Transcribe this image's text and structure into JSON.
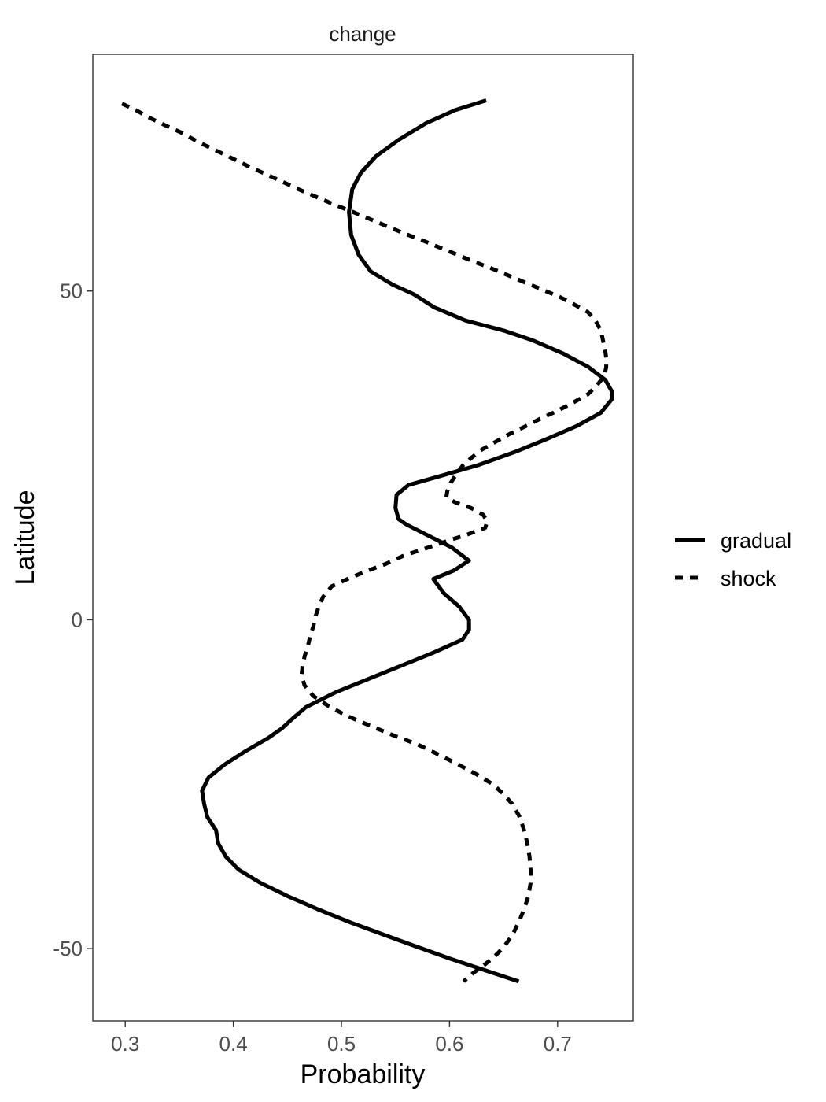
{
  "chart_data": {
    "type": "line",
    "title": "change",
    "xlabel": "Probability",
    "ylabel": "Latitude",
    "xlim": [
      0.27,
      0.77
    ],
    "ylim": [
      -61,
      86
    ],
    "x_ticks": [
      0.3,
      0.4,
      0.5,
      0.6,
      0.7
    ],
    "x_tick_labels": [
      "0.3",
      "0.4",
      "0.5",
      "0.6",
      "0.7"
    ],
    "y_ticks": [
      -50,
      0,
      50
    ],
    "y_tick_labels": [
      "-50",
      "0",
      "50"
    ],
    "grid": false,
    "legend_position": "right",
    "series": [
      {
        "name": "gradual",
        "dash": "solid",
        "color": "#000000",
        "points": [
          [
            0.634,
            79
          ],
          [
            0.605,
            77.5
          ],
          [
            0.578,
            75.5
          ],
          [
            0.553,
            73
          ],
          [
            0.532,
            70.5
          ],
          [
            0.518,
            68
          ],
          [
            0.51,
            65.5
          ],
          [
            0.507,
            62
          ],
          [
            0.509,
            58.5
          ],
          [
            0.516,
            55.5
          ],
          [
            0.527,
            53
          ],
          [
            0.547,
            51
          ],
          [
            0.567,
            49.5
          ],
          [
            0.586,
            47.5
          ],
          [
            0.615,
            45.5
          ],
          [
            0.65,
            44
          ],
          [
            0.677,
            42.5
          ],
          [
            0.705,
            40.5
          ],
          [
            0.728,
            38.5
          ],
          [
            0.744,
            36.5
          ],
          [
            0.75,
            34.8
          ],
          [
            0.75,
            33.5
          ],
          [
            0.74,
            31.5
          ],
          [
            0.718,
            29.5
          ],
          [
            0.69,
            27.5
          ],
          [
            0.66,
            25.5
          ],
          [
            0.626,
            23.5
          ],
          [
            0.59,
            21.8
          ],
          [
            0.562,
            20.5
          ],
          [
            0.551,
            19
          ],
          [
            0.55,
            17
          ],
          [
            0.553,
            15.3
          ],
          [
            0.56,
            14.5
          ],
          [
            0.578,
            13
          ],
          [
            0.602,
            11
          ],
          [
            0.618,
            9
          ],
          [
            0.604,
            7.5
          ],
          [
            0.585,
            6.2
          ],
          [
            0.595,
            4
          ],
          [
            0.609,
            2
          ],
          [
            0.618,
            0
          ],
          [
            0.618,
            -1.5
          ],
          [
            0.612,
            -3
          ],
          [
            0.585,
            -5
          ],
          [
            0.555,
            -7
          ],
          [
            0.525,
            -9
          ],
          [
            0.495,
            -11
          ],
          [
            0.467,
            -13.3
          ],
          [
            0.455,
            -15
          ],
          [
            0.445,
            -16.5
          ],
          [
            0.432,
            -18
          ],
          [
            0.411,
            -20
          ],
          [
            0.392,
            -22
          ],
          [
            0.377,
            -24
          ],
          [
            0.371,
            -26
          ],
          [
            0.373,
            -28
          ],
          [
            0.376,
            -30
          ],
          [
            0.384,
            -32
          ],
          [
            0.386,
            -34
          ],
          [
            0.393,
            -36
          ],
          [
            0.405,
            -38
          ],
          [
            0.425,
            -40
          ],
          [
            0.45,
            -42
          ],
          [
            0.478,
            -44
          ],
          [
            0.508,
            -46
          ],
          [
            0.536,
            -47.7
          ],
          [
            0.566,
            -49.5
          ],
          [
            0.6,
            -51.5
          ],
          [
            0.633,
            -53.3
          ],
          [
            0.664,
            -55
          ]
        ]
      },
      {
        "name": "shock",
        "dash": "dashed",
        "color": "#000000",
        "points": [
          [
            0.297,
            78.5
          ],
          [
            0.31,
            77.5
          ],
          [
            0.323,
            76.3
          ],
          [
            0.337,
            75.2
          ],
          [
            0.353,
            74
          ],
          [
            0.367,
            72.7
          ],
          [
            0.381,
            71.6
          ],
          [
            0.395,
            70.5
          ],
          [
            0.411,
            69.2
          ],
          [
            0.427,
            68
          ],
          [
            0.443,
            66.8
          ],
          [
            0.46,
            65.5
          ],
          [
            0.477,
            64.3
          ],
          [
            0.494,
            63.1
          ],
          [
            0.511,
            62
          ],
          [
            0.527,
            60.9
          ],
          [
            0.543,
            59.8
          ],
          [
            0.559,
            58.7
          ],
          [
            0.575,
            57.7
          ],
          [
            0.591,
            56.6
          ],
          [
            0.606,
            55.6
          ],
          [
            0.622,
            54.5
          ],
          [
            0.638,
            53.5
          ],
          [
            0.654,
            52.4
          ],
          [
            0.67,
            51.3
          ],
          [
            0.686,
            50.2
          ],
          [
            0.702,
            49.1
          ],
          [
            0.716,
            47.9
          ],
          [
            0.728,
            46.8
          ],
          [
            0.735,
            45.5
          ],
          [
            0.74,
            44
          ],
          [
            0.742,
            42.5
          ],
          [
            0.744,
            41
          ],
          [
            0.745,
            39.8
          ],
          [
            0.745,
            38.4
          ],
          [
            0.743,
            37
          ],
          [
            0.736,
            35.6
          ],
          [
            0.728,
            34.3
          ],
          [
            0.714,
            33
          ],
          [
            0.7,
            31.8
          ],
          [
            0.683,
            30.5
          ],
          [
            0.67,
            29.4
          ],
          [
            0.656,
            28.3
          ],
          [
            0.643,
            27.1
          ],
          [
            0.63,
            25.9
          ],
          [
            0.62,
            24.6
          ],
          [
            0.612,
            23.4
          ],
          [
            0.606,
            22.1
          ],
          [
            0.601,
            20.8
          ],
          [
            0.598,
            19.6
          ],
          [
            0.597,
            18.6
          ],
          [
            0.606,
            17.8
          ],
          [
            0.62,
            17
          ],
          [
            0.631,
            16
          ],
          [
            0.635,
            15
          ],
          [
            0.633,
            14
          ],
          [
            0.617,
            13
          ],
          [
            0.598,
            12
          ],
          [
            0.577,
            10.8
          ],
          [
            0.558,
            9.8
          ],
          [
            0.541,
            8.5
          ],
          [
            0.523,
            7.4
          ],
          [
            0.507,
            6.3
          ],
          [
            0.491,
            5.1
          ],
          [
            0.483,
            3.5
          ],
          [
            0.479,
            2
          ],
          [
            0.476,
            0.5
          ],
          [
            0.474,
            -1
          ],
          [
            0.471,
            -2.5
          ],
          [
            0.469,
            -4
          ],
          [
            0.466,
            -5.5
          ],
          [
            0.464,
            -7
          ],
          [
            0.463,
            -8.5
          ],
          [
            0.466,
            -10
          ],
          [
            0.474,
            -11.6
          ],
          [
            0.488,
            -13.1
          ],
          [
            0.505,
            -14.6
          ],
          [
            0.525,
            -16
          ],
          [
            0.547,
            -17.5
          ],
          [
            0.571,
            -19
          ],
          [
            0.59,
            -20.5
          ],
          [
            0.608,
            -22
          ],
          [
            0.625,
            -23.5
          ],
          [
            0.64,
            -25
          ],
          [
            0.65,
            -26.5
          ],
          [
            0.658,
            -28
          ],
          [
            0.665,
            -30
          ],
          [
            0.669,
            -32
          ],
          [
            0.672,
            -34
          ],
          [
            0.674,
            -36
          ],
          [
            0.675,
            -38
          ],
          [
            0.675,
            -40
          ],
          [
            0.673,
            -42
          ],
          [
            0.669,
            -44
          ],
          [
            0.664,
            -46
          ],
          [
            0.658,
            -48
          ],
          [
            0.65,
            -49.8
          ],
          [
            0.641,
            -51.3
          ],
          [
            0.632,
            -52.5
          ],
          [
            0.622,
            -53.7
          ],
          [
            0.613,
            -55
          ]
        ]
      }
    ]
  }
}
